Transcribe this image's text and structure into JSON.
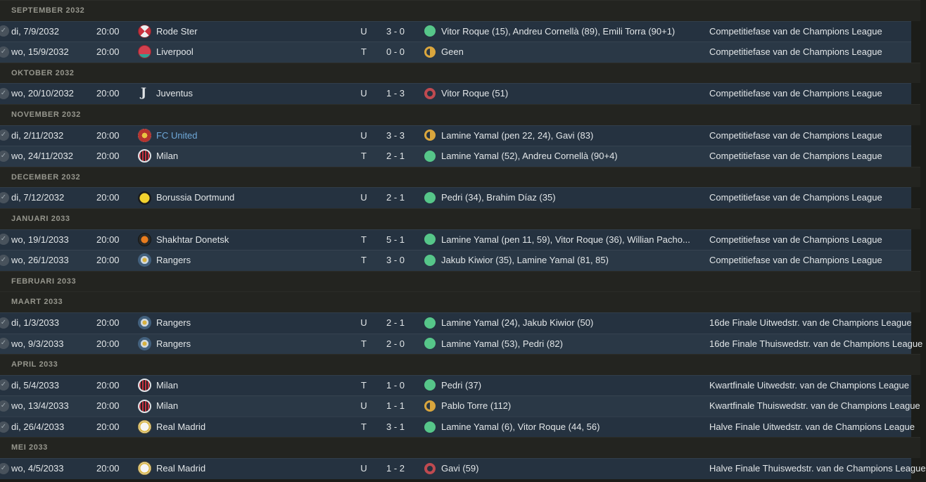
{
  "colors": {
    "win": "#56c689",
    "draw": "#daa63d",
    "loss": "#bf4a50",
    "link": "#6fa8d8",
    "row_dark": "#253240",
    "row_light": "#2a3846",
    "section_bg": "#232420",
    "page_bg": "#1c1d19"
  },
  "icons": {
    "played": "check-circle-icon",
    "win": "filled-circle-icon",
    "draw": "half-filled-circle-icon",
    "loss": "ring-circle-icon"
  },
  "sections": [
    {
      "header": "SEPTEMBER 2032",
      "rows": [
        {
          "date": "di, 7/9/2032",
          "time": "20:00",
          "badge": "rode-ster",
          "club": "Rode Ster",
          "club_link": false,
          "venue": "U",
          "score": "3 - 0",
          "result": "win",
          "scorers": "Vitor Roque (15), Andreu Cornellà (89), Emili Torra (90+1)",
          "competition": "Competitiefase van de Champions League"
        },
        {
          "date": "wo, 15/9/2032",
          "time": "20:00",
          "badge": "liverpool",
          "club": "Liverpool",
          "club_link": false,
          "venue": "T",
          "score": "0 - 0",
          "result": "draw",
          "scorers": "Geen",
          "competition": "Competitiefase van de Champions League"
        }
      ]
    },
    {
      "header": "OKTOBER 2032",
      "rows": [
        {
          "date": "wo, 20/10/2032",
          "time": "20:00",
          "badge": "juventus",
          "club": "Juventus",
          "club_link": false,
          "venue": "U",
          "score": "1 - 3",
          "result": "loss",
          "scorers": "Vitor Roque (51)",
          "competition": "Competitiefase van de Champions League"
        }
      ]
    },
    {
      "header": "NOVEMBER 2032",
      "rows": [
        {
          "date": "di, 2/11/2032",
          "time": "20:00",
          "badge": "fc-united",
          "club": "FC United",
          "club_link": true,
          "venue": "U",
          "score": "3 - 3",
          "result": "draw",
          "scorers": "Lamine Yamal (pen 22, 24), Gavi (83)",
          "competition": "Competitiefase van de Champions League"
        },
        {
          "date": "wo, 24/11/2032",
          "time": "20:00",
          "badge": "milan",
          "club": "Milan",
          "club_link": false,
          "venue": "T",
          "score": "2 - 1",
          "result": "win",
          "scorers": "Lamine Yamal (52), Andreu Cornellà (90+4)",
          "competition": "Competitiefase van de Champions League"
        }
      ]
    },
    {
      "header": "DECEMBER 2032",
      "rows": [
        {
          "date": "di, 7/12/2032",
          "time": "20:00",
          "badge": "dortmund",
          "club": "Borussia Dortmund",
          "club_link": false,
          "venue": "U",
          "score": "2 - 1",
          "result": "win",
          "scorers": "Pedri (34), Brahim Díaz (35)",
          "competition": "Competitiefase van de Champions League"
        }
      ]
    },
    {
      "header": "JANUARI 2033",
      "rows": [
        {
          "date": "wo, 19/1/2033",
          "time": "20:00",
          "badge": "shakhtar",
          "club": "Shakhtar Donetsk",
          "club_link": false,
          "venue": "T",
          "score": "5 - 1",
          "result": "win",
          "scorers": "Lamine Yamal (pen 11, 59), Vitor Roque (36), Willian Pacho...",
          "competition": "Competitiefase van de Champions League"
        },
        {
          "date": "wo, 26/1/2033",
          "time": "20:00",
          "badge": "rangers",
          "club": "Rangers",
          "club_link": false,
          "venue": "T",
          "score": "3 - 0",
          "result": "win",
          "scorers": "Jakub Kiwior (35), Lamine Yamal (81, 85)",
          "competition": "Competitiefase van de Champions League"
        }
      ]
    },
    {
      "header": "FEBRUARI 2033",
      "rows": []
    },
    {
      "header": "MAART 2033",
      "rows": [
        {
          "date": "di, 1/3/2033",
          "time": "20:00",
          "badge": "rangers",
          "club": "Rangers",
          "club_link": false,
          "venue": "U",
          "score": "2 - 1",
          "result": "win",
          "scorers": "Lamine Yamal (24), Jakub Kiwior (50)",
          "competition": "16de Finale Uitwedstr. van de Champions League"
        },
        {
          "date": "wo, 9/3/2033",
          "time": "20:00",
          "badge": "rangers",
          "club": "Rangers",
          "club_link": false,
          "venue": "T",
          "score": "2 - 0",
          "result": "win",
          "scorers": "Lamine Yamal (53), Pedri (82)",
          "competition": "16de Finale Thuiswedstr. van de Champions League"
        }
      ]
    },
    {
      "header": "APRIL 2033",
      "rows": [
        {
          "date": "di, 5/4/2033",
          "time": "20:00",
          "badge": "milan",
          "club": "Milan",
          "club_link": false,
          "venue": "T",
          "score": "1 - 0",
          "result": "win",
          "scorers": "Pedri (37)",
          "competition": "Kwartfinale Uitwedstr. van de Champions League"
        },
        {
          "date": "wo, 13/4/2033",
          "time": "20:00",
          "badge": "milan",
          "club": "Milan",
          "club_link": false,
          "venue": "U",
          "score": "1 - 1",
          "result": "draw",
          "scorers": "Pablo Torre (112)",
          "competition": "Kwartfinale Thuiswedstr. van de Champions League"
        },
        {
          "date": "di, 26/4/2033",
          "time": "20:00",
          "badge": "real-madrid",
          "club": "Real Madrid",
          "club_link": false,
          "venue": "T",
          "score": "3 - 1",
          "result": "win",
          "scorers": "Lamine Yamal (6), Vitor Roque (44, 56)",
          "competition": "Halve Finale Uitwedstr. van de Champions League"
        }
      ]
    },
    {
      "header": "MEI 2033",
      "rows": [
        {
          "date": "wo, 4/5/2033",
          "time": "20:00",
          "badge": "real-madrid",
          "club": "Real Madrid",
          "club_link": false,
          "venue": "U",
          "score": "1 - 2",
          "result": "loss",
          "scorers": "Gavi (59)",
          "competition": "Halve Finale Thuiswedstr. van de Champions League"
        }
      ]
    }
  ]
}
